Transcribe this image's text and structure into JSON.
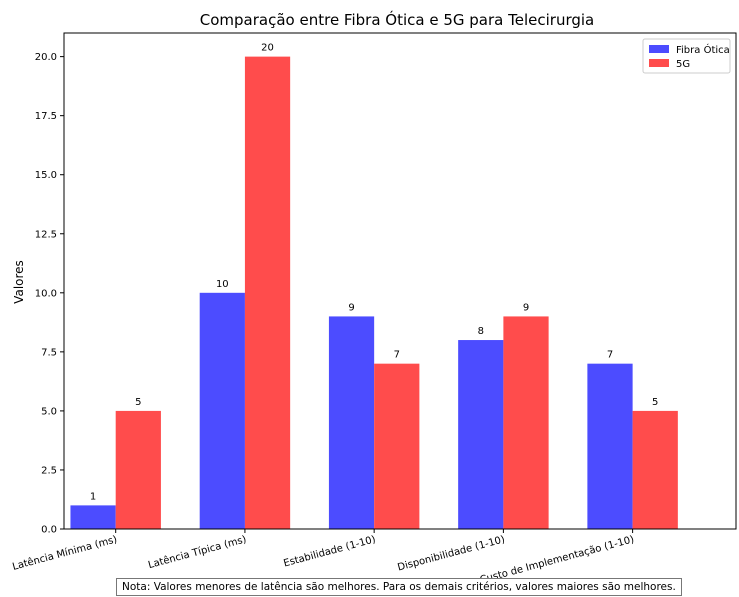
{
  "chart_data": {
    "type": "bar",
    "title": "Comparação entre Fibra Ótica e 5G para Telecirurgia",
    "xlabel": "",
    "ylabel": "Valores",
    "categories": [
      "Latência Mínima (ms)",
      "Latência Típica (ms)",
      "Estabilidade (1-10)",
      "Disponibilidade (1-10)",
      "Custo de Implementação (1-10)"
    ],
    "series": [
      {
        "name": "Fibra Ótica",
        "values": [
          1,
          10,
          9,
          8,
          7
        ],
        "color": "#4c4cff"
      },
      {
        "name": "5G",
        "values": [
          5,
          20,
          7,
          9,
          5
        ],
        "color": "#ff4c4c"
      }
    ],
    "ylim": [
      0,
      21
    ],
    "yticks": [
      "0.0",
      "2.5",
      "5.0",
      "7.5",
      "10.0",
      "12.5",
      "15.0",
      "17.5",
      "20.0"
    ],
    "legend": "top-right",
    "grid": false
  },
  "note": "Nota: Valores menores de latência são melhores. Para os demais critérios, valores maiores são melhores."
}
